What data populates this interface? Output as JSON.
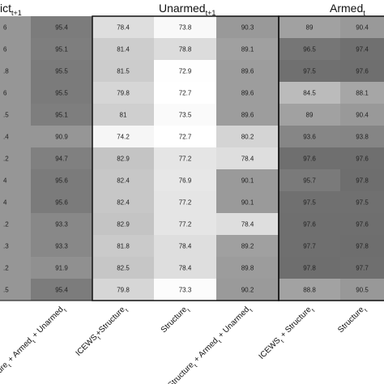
{
  "chart_data": {
    "type": "heatmap",
    "panels": [
      {
        "title": "ict",
        "title_sub": "t+1",
        "columns": [
          {
            "label": "",
            "values": [
              "6",
              "6",
              ".8",
              "6",
              ".5",
              ".4",
              ".2",
              "4",
              "4",
              ".2",
              ".3",
              ".2",
              ".5"
            ]
          },
          {
            "label": "Structure",
            "label_parts": [
              "Structure",
              "t",
              " + Armed",
              "t",
              " + Unarmed",
              "t"
            ],
            "values": [
              95.4,
              95.1,
              95.5,
              95.5,
              95.1,
              90.9,
              94.7,
              95.6,
              95.6,
              93.3,
              93.3,
              91.9,
              95.4
            ]
          }
        ]
      },
      {
        "title": "Unarmed",
        "title_sub": "t+1",
        "columns": [
          {
            "label": "ICEWS+Structure",
            "label_parts": [
              "ICEWS",
              "t",
              "+Structure",
              "t"
            ],
            "values": [
              78.4,
              81.4,
              81.5,
              79.8,
              81,
              74.2,
              82.9,
              82.4,
              82.4,
              82.9,
              81.8,
              82.5,
              79.8
            ]
          },
          {
            "label": "Structure",
            "label_parts": [
              "Structure",
              "t"
            ],
            "values": [
              73.8,
              78.8,
              72.9,
              72.7,
              73.5,
              72.7,
              77.2,
              76.9,
              77.2,
              77.2,
              78.4,
              78.4,
              73.3
            ]
          },
          {
            "label": "Structure + Armed + Unarmed",
            "label_parts": [
              "Structure",
              "t",
              " + Armed",
              "t",
              " + Unarmed",
              "t"
            ],
            "values": [
              90.3,
              89.1,
              89.6,
              89.6,
              89.6,
              80.2,
              78.4,
              90.1,
              90.1,
              78.4,
              89.2,
              89.8,
              90.2
            ]
          }
        ]
      },
      {
        "title": "Armed",
        "title_sub": "t",
        "columns": [
          {
            "label": "ICEWS+Structure",
            "label_parts": [
              "ICEWS",
              "t",
              " + Structure",
              "t"
            ],
            "values": [
              89,
              96.5,
              97.5,
              84.5,
              89,
              93.6,
              97.6,
              95.7,
              97.5,
              97.6,
              97.7,
              97.8,
              88.8
            ]
          },
          {
            "label": "Structure",
            "label_parts": [
              "Structure",
              "t"
            ],
            "values": [
              90.4,
              97.4,
              97.6,
              88.1,
              90.4,
              93.8,
              97.6,
              97.8,
              97.5,
              97.6,
              97.8,
              97.7,
              90.5
            ]
          }
        ]
      }
    ],
    "value_range": [
      72.7,
      97.8
    ]
  }
}
